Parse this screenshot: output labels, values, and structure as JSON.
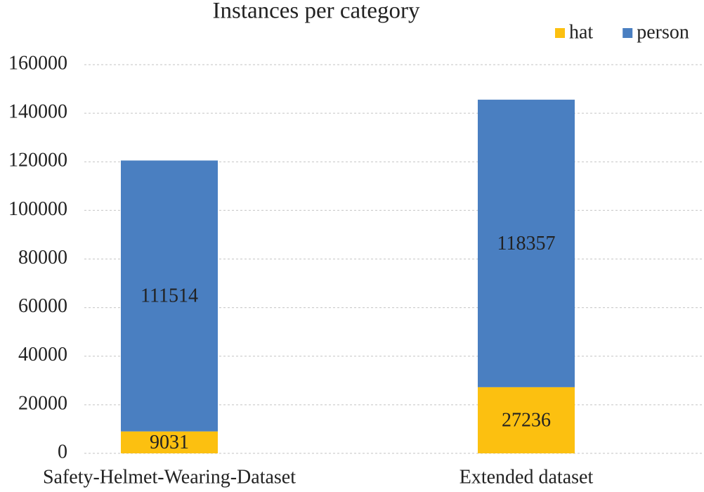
{
  "chart_data": {
    "type": "stacked-bar",
    "title": "Instances per category",
    "categories": [
      "Safety-Helmet-Wearing-Dataset",
      "Extended dataset"
    ],
    "series": [
      {
        "name": "hat",
        "color": "#fcc010",
        "values": [
          9031,
          27236
        ]
      },
      {
        "name": "person",
        "color": "#4a7fc1",
        "values": [
          111514,
          118357
        ]
      }
    ],
    "ylim": [
      0,
      160000
    ],
    "yticks": [
      0,
      20000,
      40000,
      60000,
      80000,
      100000,
      120000,
      140000,
      160000
    ],
    "grid": true,
    "legend": "top-right"
  }
}
